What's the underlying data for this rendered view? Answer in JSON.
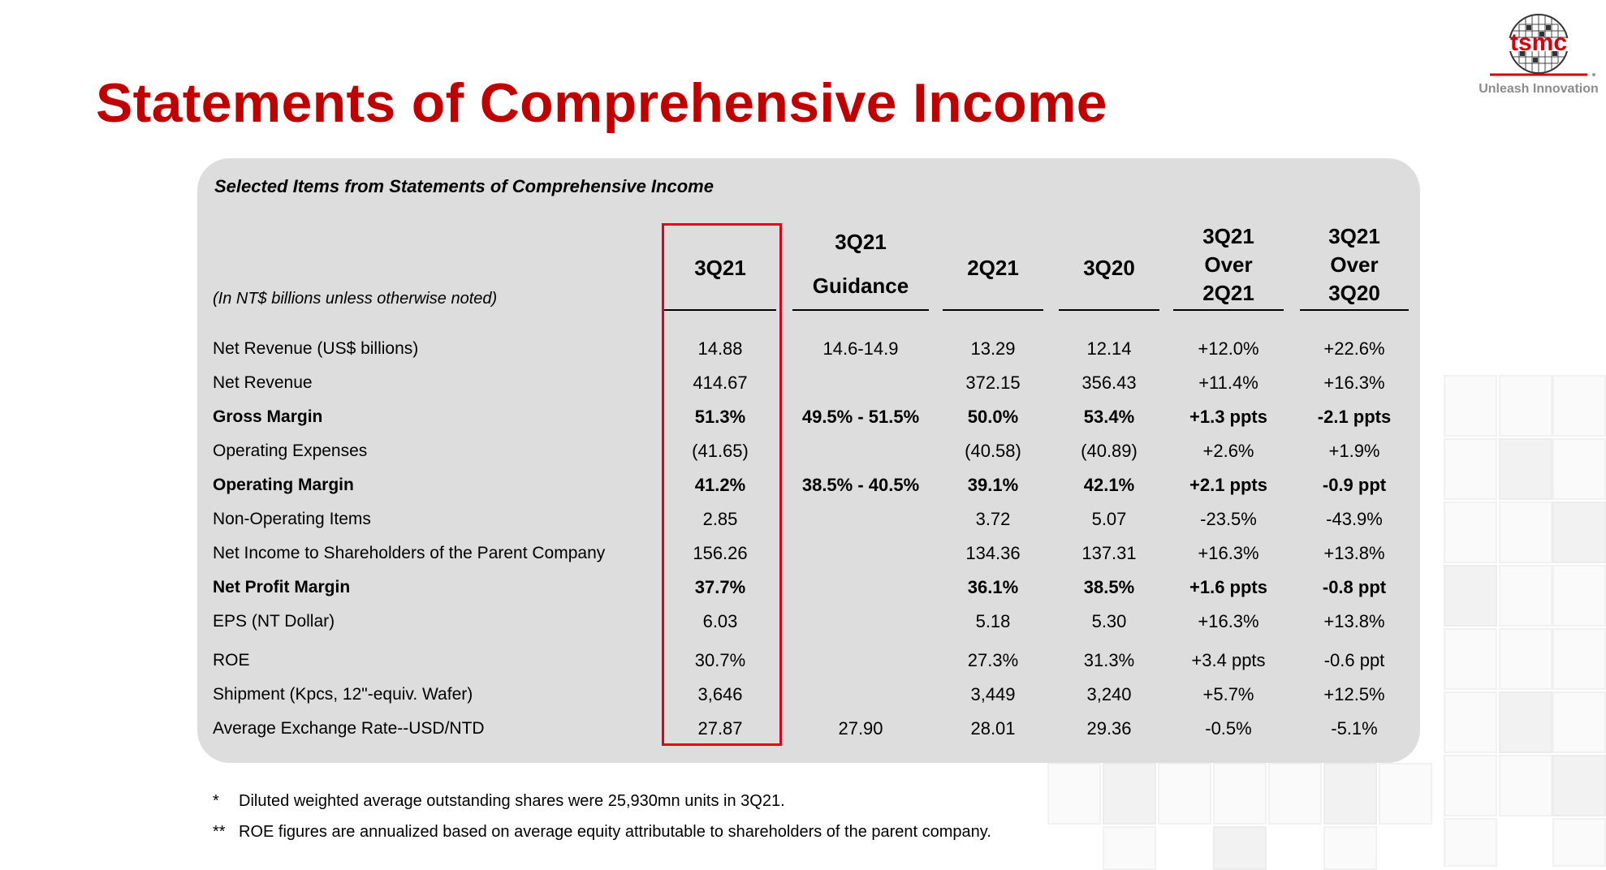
{
  "title": "Statements of Comprehensive Income",
  "logo": {
    "text": "tsmc",
    "tagline": "Unleash Innovation"
  },
  "panel": {
    "title": "Selected Items from Statements of Comprehensive Income",
    "units_note": "(In NT$ billions unless otherwise noted)",
    "columns": [
      {
        "lines": [
          "3Q21"
        ]
      },
      {
        "lines": [
          "3Q21",
          "Guidance"
        ]
      },
      {
        "lines": [
          "2Q21"
        ]
      },
      {
        "lines": [
          "3Q20"
        ]
      },
      {
        "lines": [
          "3Q21",
          "Over",
          "2Q21"
        ]
      },
      {
        "lines": [
          "3Q21",
          "Over",
          "3Q20"
        ]
      }
    ],
    "rows": [
      {
        "label": "Net Revenue (US$ billions)",
        "bold": false,
        "values": [
          "14.88",
          "14.6-14.9",
          "13.29",
          "12.14",
          "+12.0%",
          "+22.6%"
        ]
      },
      {
        "label": "Net Revenue",
        "bold": false,
        "values": [
          "414.67",
          "",
          "372.15",
          "356.43",
          "+11.4%",
          "+16.3%"
        ]
      },
      {
        "label": "Gross Margin",
        "bold": true,
        "values": [
          "51.3%",
          "49.5% - 51.5%",
          "50.0%",
          "53.4%",
          "+1.3 ppts",
          "-2.1 ppts"
        ]
      },
      {
        "label": "Operating Expenses",
        "bold": false,
        "values": [
          "(41.65)",
          "",
          "(40.58)",
          "(40.89)",
          "+2.6%",
          "+1.9%"
        ]
      },
      {
        "label": "Operating Margin",
        "bold": true,
        "values": [
          "41.2%",
          "38.5% - 40.5%",
          "39.1%",
          "42.1%",
          "+2.1 ppts",
          "-0.9 ppt"
        ]
      },
      {
        "label": "Non-Operating Items",
        "bold": false,
        "values": [
          "2.85",
          "",
          "3.72",
          "5.07",
          "-23.5%",
          "-43.9%"
        ]
      },
      {
        "label": "Net Income to Shareholders of the Parent Company",
        "bold": false,
        "values": [
          "156.26",
          "",
          "134.36",
          "137.31",
          "+16.3%",
          "+13.8%"
        ]
      },
      {
        "label": "Net Profit Margin",
        "bold": true,
        "values": [
          "37.7%",
          "",
          "36.1%",
          "38.5%",
          "+1.6 ppts",
          "-0.8 ppt"
        ]
      },
      {
        "label": "EPS (NT Dollar)",
        "bold": false,
        "values": [
          "6.03",
          "",
          "5.18",
          "5.30",
          "+16.3%",
          "+13.8%"
        ]
      },
      {
        "label": "ROE",
        "bold": false,
        "values": [
          "30.7%",
          "",
          "27.3%",
          "31.3%",
          "+3.4 ppts",
          "-0.6 ppt"
        ]
      },
      {
        "label": "Shipment (Kpcs, 12\"-equiv. Wafer)",
        "bold": false,
        "values": [
          "3,646",
          "",
          "3,449",
          "3,240",
          "+5.7%",
          "+12.5%"
        ]
      },
      {
        "label": "Average Exchange Rate--USD/NTD",
        "bold": false,
        "values": [
          "27.87",
          "27.90",
          "28.01",
          "29.36",
          "-0.5%",
          "-5.1%"
        ]
      }
    ]
  },
  "footnotes": [
    {
      "mark": "*",
      "text": "Diluted weighted average outstanding shares were 25,930mn units in 3Q21."
    },
    {
      "mark": "**",
      "text": "ROE figures are annualized based on average equity attributable to shareholders of the parent company."
    }
  ],
  "colors": {
    "title_red": "#c00000",
    "highlight_red": "#e3001b",
    "panel_gray": "#dddddd"
  }
}
